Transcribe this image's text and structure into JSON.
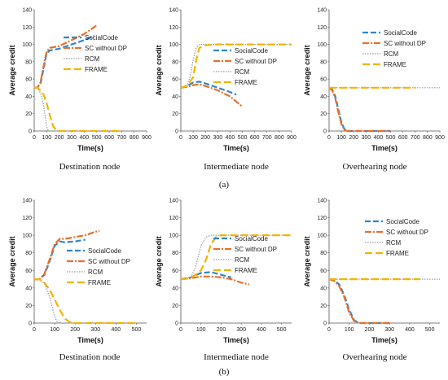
{
  "colors": {
    "SocialCode": "#2e86c8",
    "SC without DP": "#e8702a",
    "RCM": "#999999",
    "FRAME": "#f2b400"
  },
  "row_labels": [
    "(a)",
    "(b)"
  ],
  "chart_data": [
    {
      "type": "line",
      "caption": "Destination node",
      "xlabel": "Time(s)",
      "ylabel": "Average credit",
      "xlim": [
        0,
        900
      ],
      "ylim": [
        0,
        140
      ],
      "xticks": [
        0,
        100,
        200,
        300,
        400,
        500,
        600,
        700,
        800,
        900
      ],
      "yticks": [
        0,
        20,
        40,
        60,
        80,
        100,
        120,
        140
      ],
      "legend_position": "center-right",
      "series": [
        {
          "name": "SocialCode",
          "x": [
            0,
            25,
            50,
            75,
            100,
            125,
            200,
            300,
            400,
            480
          ],
          "y": [
            50,
            50,
            55,
            72,
            90,
            93,
            95,
            100,
            105,
            110
          ]
        },
        {
          "name": "SC without DP",
          "x": [
            0,
            25,
            50,
            75,
            100,
            125,
            200,
            300,
            400,
            500
          ],
          "y": [
            50,
            50,
            56,
            75,
            92,
            96,
            98,
            105,
            112,
            122
          ]
        },
        {
          "name": "RCM",
          "x": [
            0,
            25,
            50,
            75,
            90,
            100,
            110,
            120
          ],
          "y": [
            50,
            50,
            44,
            30,
            15,
            5,
            1,
            0
          ]
        },
        {
          "name": "FRAME",
          "x": [
            0,
            25,
            50,
            75,
            100,
            125,
            150,
            175,
            200,
            300,
            500,
            700
          ],
          "y": [
            50,
            50,
            47,
            42,
            32,
            18,
            6,
            1,
            0,
            0,
            0,
            0
          ]
        }
      ]
    },
    {
      "type": "line",
      "caption": "Intermediate node",
      "xlabel": "Time(s)",
      "ylabel": "Average credit",
      "xlim": [
        0,
        900
      ],
      "ylim": [
        0,
        140
      ],
      "xticks": [
        0,
        100,
        200,
        300,
        400,
        500,
        600,
        700,
        800,
        900
      ],
      "yticks": [
        0,
        20,
        40,
        60,
        80,
        100,
        120,
        140
      ],
      "legend_position": "center-right",
      "series": [
        {
          "name": "SocialCode",
          "x": [
            0,
            50,
            100,
            150,
            200,
            300,
            400,
            450
          ],
          "y": [
            50,
            52,
            56,
            57,
            55,
            50,
            45,
            42
          ]
        },
        {
          "name": "SC without DP",
          "x": [
            0,
            50,
            100,
            150,
            200,
            300,
            400,
            500
          ],
          "y": [
            50,
            51,
            53,
            54,
            52,
            47,
            40,
            28
          ]
        },
        {
          "name": "RCM",
          "x": [
            0,
            50,
            75,
            100,
            125,
            150,
            200,
            300,
            500,
            900
          ],
          "y": [
            50,
            53,
            62,
            82,
            96,
            100,
            100,
            100,
            100,
            100
          ]
        },
        {
          "name": "FRAME",
          "x": [
            0,
            50,
            100,
            125,
            150,
            200,
            300,
            500,
            900
          ],
          "y": [
            50,
            52,
            62,
            82,
            96,
            99,
            100,
            100,
            100
          ]
        }
      ]
    },
    {
      "type": "line",
      "caption": "Overhearing node",
      "xlabel": "Time(s)",
      "ylabel": "Average credit",
      "xlim": [
        0,
        900
      ],
      "ylim": [
        0,
        140
      ],
      "xticks": [
        0,
        100,
        200,
        300,
        400,
        500,
        600,
        700,
        800,
        900
      ],
      "yticks": [
        0,
        20,
        40,
        60,
        80,
        100,
        120,
        140
      ],
      "legend_position": "top-right",
      "series": [
        {
          "name": "SocialCode",
          "x": [
            0,
            25,
            50,
            75,
            100,
            125,
            150,
            200,
            500
          ],
          "y": [
            50,
            48,
            40,
            25,
            10,
            2,
            0,
            0,
            0
          ]
        },
        {
          "name": "SC without DP",
          "x": [
            0,
            25,
            50,
            75,
            100,
            125,
            150,
            200,
            500
          ],
          "y": [
            50,
            47,
            38,
            22,
            8,
            1,
            0,
            0,
            0
          ]
        },
        {
          "name": "RCM",
          "x": [
            0,
            900
          ],
          "y": [
            50,
            50
          ]
        },
        {
          "name": "FRAME",
          "x": [
            0,
            700
          ],
          "y": [
            50,
            50
          ]
        }
      ]
    },
    {
      "type": "line",
      "caption": "Destination node",
      "xlabel": "Time(s)",
      "ylabel": "Average credit",
      "xlim": [
        0,
        550
      ],
      "ylim": [
        0,
        140
      ],
      "xticks": [
        0,
        100,
        200,
        300,
        400,
        500
      ],
      "yticks": [
        0,
        20,
        40,
        60,
        80,
        100,
        120,
        140
      ],
      "legend_position": "center-right",
      "series": [
        {
          "name": "SocialCode",
          "x": [
            0,
            25,
            50,
            75,
            100,
            125,
            150,
            200,
            250
          ],
          "y": [
            50,
            50,
            55,
            70,
            88,
            93,
            92,
            93,
            95
          ]
        },
        {
          "name": "SC without DP",
          "x": [
            0,
            25,
            50,
            75,
            100,
            125,
            150,
            200,
            250,
            300,
            320
          ],
          "y": [
            50,
            50,
            56,
            72,
            90,
            96,
            96,
            98,
            100,
            104,
            105
          ]
        },
        {
          "name": "RCM",
          "x": [
            0,
            25,
            50,
            75,
            100,
            110,
            125
          ],
          "y": [
            50,
            50,
            45,
            30,
            8,
            2,
            0
          ]
        },
        {
          "name": "FRAME",
          "x": [
            0,
            25,
            50,
            75,
            100,
            125,
            150,
            175,
            200,
            300,
            400,
            500
          ],
          "y": [
            50,
            50,
            46,
            38,
            27,
            15,
            5,
            1,
            0,
            0,
            0,
            0
          ]
        }
      ]
    },
    {
      "type": "line",
      "caption": "Intermediate node",
      "xlabel": "Time(s)",
      "ylabel": "Average credit",
      "xlim": [
        0,
        550
      ],
      "ylim": [
        0,
        140
      ],
      "xticks": [
        0,
        100,
        200,
        300,
        400,
        500
      ],
      "yticks": [
        0,
        20,
        40,
        60,
        80,
        100,
        120,
        140
      ],
      "legend_position": "center-right",
      "series": [
        {
          "name": "SocialCode",
          "x": [
            0,
            50,
            100,
            150,
            200,
            250
          ],
          "y": [
            50,
            52,
            57,
            58,
            55,
            52
          ]
        },
        {
          "name": "SC without DP",
          "x": [
            0,
            50,
            100,
            150,
            200,
            250,
            300,
            340
          ],
          "y": [
            50,
            51,
            53,
            53,
            52,
            50,
            46,
            44
          ]
        },
        {
          "name": "RCM",
          "x": [
            0,
            50,
            75,
            100,
            125,
            150,
            200,
            300,
            550
          ],
          "y": [
            50,
            52,
            65,
            88,
            98,
            100,
            100,
            100,
            100
          ]
        },
        {
          "name": "FRAME",
          "x": [
            0,
            50,
            100,
            125,
            150,
            175,
            200,
            300,
            550
          ],
          "y": [
            50,
            51,
            60,
            72,
            90,
            98,
            100,
            100,
            100
          ]
        }
      ]
    },
    {
      "type": "line",
      "caption": "Overhearing node",
      "xlabel": "Time(s)",
      "ylabel": "Average credit",
      "xlim": [
        0,
        550
      ],
      "ylim": [
        0,
        140
      ],
      "xticks": [
        0,
        100,
        200,
        300,
        400,
        500
      ],
      "yticks": [
        0,
        20,
        40,
        60,
        80,
        100,
        120,
        140
      ],
      "legend_position": "top-right",
      "series": [
        {
          "name": "SocialCode",
          "x": [
            0,
            25,
            50,
            75,
            100,
            125,
            150,
            300
          ],
          "y": [
            50,
            49,
            44,
            32,
            15,
            3,
            0,
            0
          ]
        },
        {
          "name": "SC without DP",
          "x": [
            0,
            25,
            50,
            75,
            100,
            125,
            150,
            300
          ],
          "y": [
            50,
            48,
            42,
            30,
            12,
            2,
            0,
            0
          ]
        },
        {
          "name": "RCM",
          "x": [
            0,
            550
          ],
          "y": [
            50,
            50
          ]
        },
        {
          "name": "FRAME",
          "x": [
            0,
            450
          ],
          "y": [
            50,
            50
          ]
        }
      ]
    }
  ]
}
